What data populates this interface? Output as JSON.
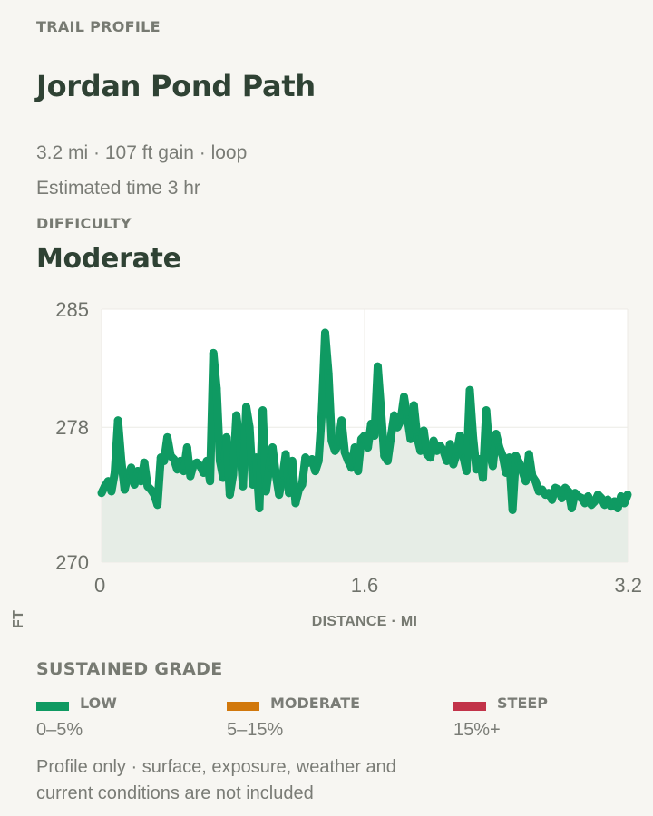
{
  "header": {
    "eyebrow": "TRAIL PROFILE",
    "trail_name": "Jordan Pond Path",
    "stats": "3.2 mi · 107 ft gain · loop",
    "estimated_time": "Estimated time 3 hr",
    "difficulty_label": "DIFFICULTY",
    "difficulty_value": "Moderate"
  },
  "chart_data": {
    "type": "area",
    "xlabel": "DISTANCE · MI",
    "ylabel": "ELEVATION · FT",
    "xlim": [
      0,
      3.2
    ],
    "ylim": [
      270,
      285
    ],
    "x_ticks": [
      "0",
      "1.6",
      "3.2"
    ],
    "y_ticks": [
      "285",
      "278",
      "270"
    ],
    "grid": true,
    "line_color": "#0f9a62",
    "fill_color": "#e6ede6",
    "series": [
      {
        "x": [
          0,
          0.02,
          0.04,
          0.06,
          0.08,
          0.1,
          0.12,
          0.14,
          0.16,
          0.18,
          0.2,
          0.22,
          0.24,
          0.26,
          0.28,
          0.3,
          0.32,
          0.34,
          0.36,
          0.38,
          0.4,
          0.42,
          0.44,
          0.46,
          0.48,
          0.5,
          0.52,
          0.54,
          0.56,
          0.58,
          0.6,
          0.62,
          0.64,
          0.66,
          0.68,
          0.7,
          0.72,
          0.74,
          0.76,
          0.78,
          0.8,
          0.82,
          0.84,
          0.86,
          0.88,
          0.9,
          0.92,
          0.94,
          0.96,
          0.98,
          1.0,
          1.02,
          1.04,
          1.06,
          1.08,
          1.1,
          1.12,
          1.14,
          1.16,
          1.18,
          1.2,
          1.22,
          1.24,
          1.26,
          1.28,
          1.3,
          1.32,
          1.34,
          1.36,
          1.38,
          1.4,
          1.42,
          1.44,
          1.46,
          1.48,
          1.5,
          1.52,
          1.54,
          1.56,
          1.58,
          1.6,
          1.62,
          1.64,
          1.66,
          1.68,
          1.7,
          1.72,
          1.74,
          1.76,
          1.78,
          1.8,
          1.82,
          1.84,
          1.86,
          1.88,
          1.9,
          1.92,
          1.94,
          1.96,
          1.98,
          2.0,
          2.02,
          2.04,
          2.06,
          2.08,
          2.1,
          2.12,
          2.14,
          2.16,
          2.18,
          2.2,
          2.22,
          2.24,
          2.26,
          2.28,
          2.3,
          2.32,
          2.34,
          2.36,
          2.38,
          2.4,
          2.42,
          2.44,
          2.46,
          2.48,
          2.5,
          2.52,
          2.54,
          2.56,
          2.58,
          2.6,
          2.62,
          2.64,
          2.66,
          2.68,
          2.7,
          2.72,
          2.74,
          2.76,
          2.78,
          2.8,
          2.82,
          2.84,
          2.86,
          2.88,
          2.9,
          2.92,
          2.94,
          2.96,
          2.98,
          3.0,
          3.02,
          3.04,
          3.06,
          3.08,
          3.1,
          3.12,
          3.14,
          3.16,
          3.18,
          3.2
        ],
        "y": [
          274.1,
          274.5,
          274.8,
          274.2,
          275.3,
          278.4,
          276.0,
          274.3,
          275.1,
          275.6,
          274.6,
          275.4,
          274.8,
          275.9,
          274.5,
          274.3,
          274.0,
          273.4,
          276.2,
          276.0,
          277.4,
          276.3,
          276.1,
          275.5,
          276.0,
          275.4,
          276.8,
          275.1,
          275.8,
          275.9,
          275.7,
          275.3,
          276.0,
          274.8,
          282.4,
          280.3,
          276.0,
          275.0,
          277.4,
          274.0,
          275.2,
          278.7,
          277.2,
          274.5,
          279.2,
          278.0,
          274.6,
          276.2,
          273.2,
          279.0,
          274.2,
          275.6,
          276.8,
          275.2,
          274.0,
          275.0,
          276.4,
          274.1,
          276.0,
          273.5,
          274.3,
          274.6,
          276.2,
          275.9,
          276.1,
          275.4,
          276.0,
          278.9,
          283.6,
          281.2,
          277.2,
          276.6,
          277.0,
          278.4,
          276.5,
          276.0,
          275.6,
          276.8,
          275.4,
          277.3,
          277.5,
          276.8,
          278.2,
          277.5,
          281.6,
          279.0,
          276.3,
          276.0,
          277.4,
          278.7,
          278.0,
          278.4,
          279.8,
          278.6,
          277.3,
          279.3,
          277.4,
          276.6,
          277.8,
          276.4,
          276.2,
          277.2,
          276.6,
          276.9,
          276.6,
          276.0,
          277.0,
          275.8,
          276.4,
          277.5,
          276.3,
          275.4,
          280.2,
          277.4,
          275.5,
          276.1,
          275.0,
          279.0,
          276.5,
          275.7,
          277.6,
          276.8,
          276.3,
          275.3,
          276.2,
          273.1,
          276.3,
          275.9,
          275.4,
          274.8,
          276.4,
          275.1,
          274.8,
          274.2,
          274.3,
          274.0,
          274.1,
          273.7,
          274.4,
          274.3,
          273.8,
          274.4,
          274.2,
          273.2,
          274.1,
          273.9,
          273.8,
          273.5,
          273.9,
          273.4,
          273.6,
          274.0,
          273.8,
          273.4,
          273.7,
          273.3,
          273.6,
          273.2,
          273.9,
          273.5,
          274.0
        ]
      }
    ]
  },
  "legend": {
    "title": "SUSTAINED GRADE",
    "items": [
      {
        "name": "LOW",
        "range": "0–5%",
        "color": "#0f9a62"
      },
      {
        "name": "MODERATE",
        "range": "5–15%",
        "color": "#d1780c"
      },
      {
        "name": "STEEP",
        "range": "15%+",
        "color": "#c23349"
      }
    ]
  },
  "footnote": "Profile only · surface, exposure, weather and current conditions are not included"
}
